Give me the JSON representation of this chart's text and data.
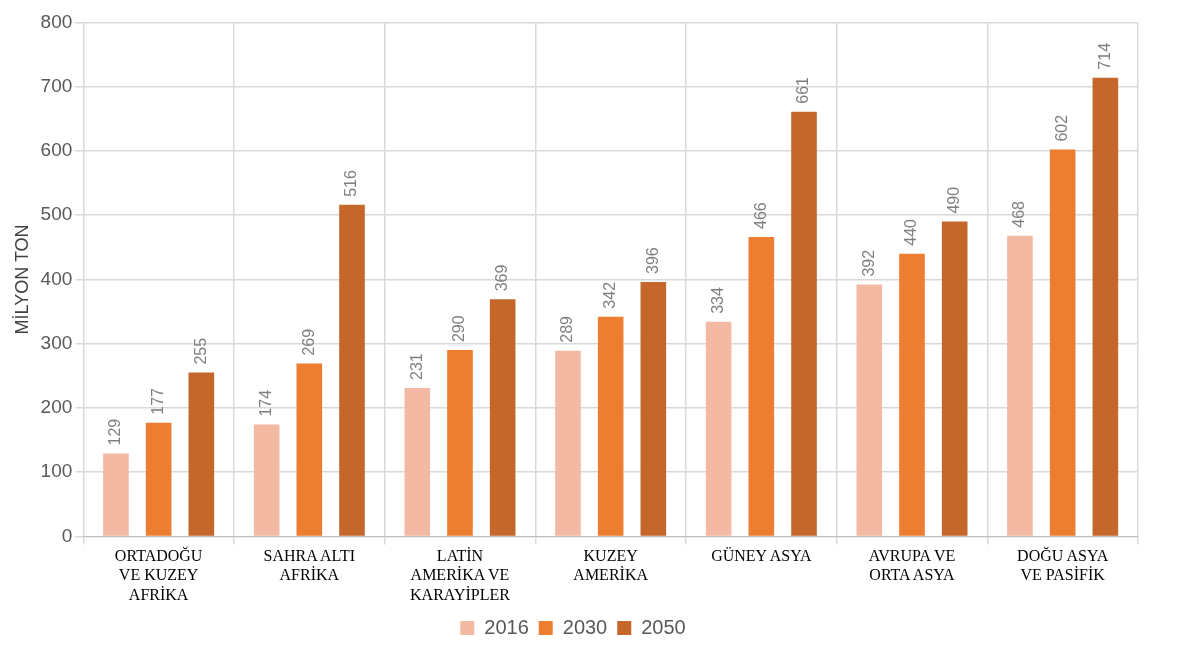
{
  "chart_data": {
    "type": "bar",
    "ylabel": "MİLYON TON",
    "categories": [
      "ORTADOĞU VE KUZEY AFRİKA",
      "SAHRA ALTI AFRİKA",
      "LATİN AMERİKA VE KARAYİPLER",
      "KUZEY AMERİKA",
      "GÜNEY ASYA",
      "AVRUPA VE ORTA ASYA",
      "DOĞU ASYA VE PASİFİK"
    ],
    "series": [
      {
        "name": "2016",
        "color": "#f4b9a2",
        "values": [
          129,
          174,
          231,
          289,
          334,
          392,
          468
        ]
      },
      {
        "name": "2030",
        "color": "#ed7d31",
        "values": [
          177,
          269,
          290,
          342,
          466,
          440,
          602
        ]
      },
      {
        "name": "2050",
        "color": "#c5662a",
        "values": [
          255,
          516,
          369,
          396,
          661,
          490,
          714
        ]
      }
    ],
    "ylim": [
      0,
      800
    ],
    "yticks": [
      0,
      100,
      200,
      300,
      400,
      500,
      600,
      700,
      800
    ],
    "grid": true,
    "legend": "bottom",
    "data_labels": true
  }
}
